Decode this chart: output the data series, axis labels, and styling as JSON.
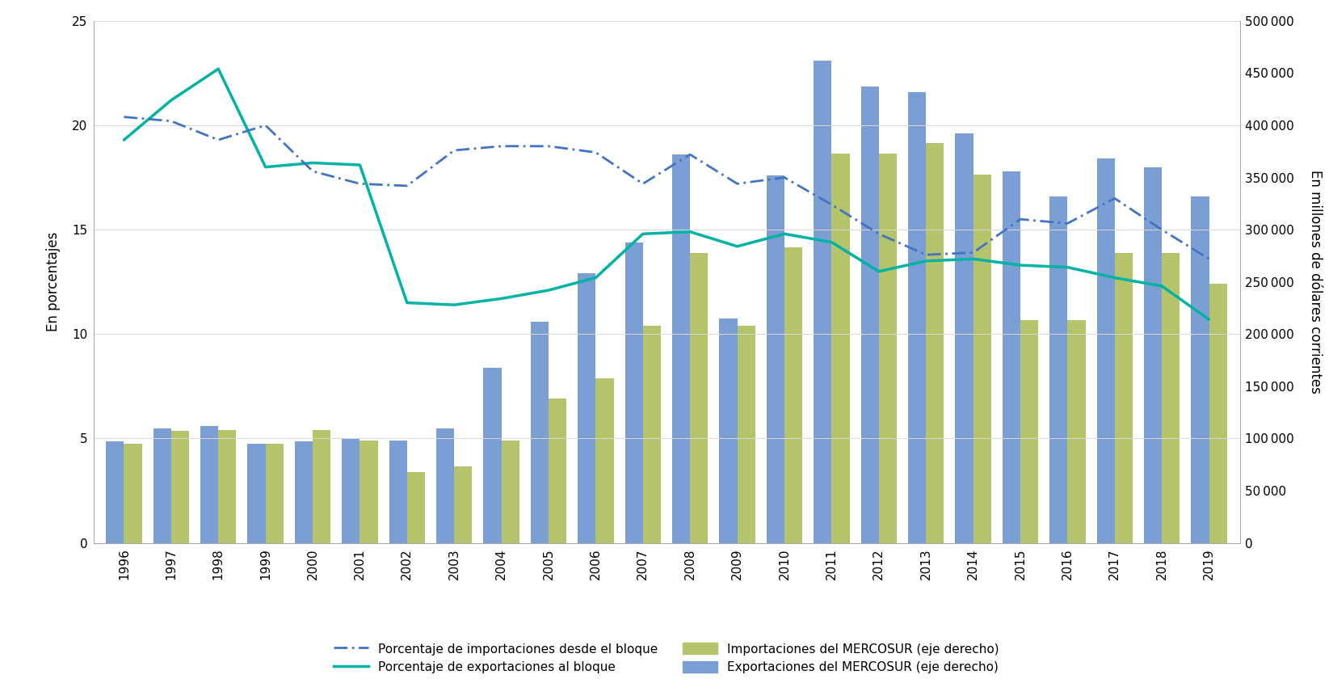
{
  "years": [
    1996,
    1997,
    1998,
    1999,
    2000,
    2001,
    2002,
    2003,
    2004,
    2005,
    2006,
    2007,
    2008,
    2009,
    2010,
    2011,
    2012,
    2013,
    2014,
    2015,
    2016,
    2017,
    2018,
    2019
  ],
  "exports_mercosur": [
    97000,
    110000,
    112000,
    95000,
    97000,
    100000,
    98000,
    110000,
    168000,
    212000,
    258000,
    288000,
    372000,
    215000,
    352000,
    462000,
    437000,
    432000,
    392000,
    356000,
    332000,
    368000,
    360000,
    332000
  ],
  "imports_mercosur": [
    95000,
    107000,
    108000,
    95000,
    108000,
    98000,
    68000,
    73000,
    98000,
    138000,
    158000,
    208000,
    278000,
    208000,
    283000,
    373000,
    373000,
    383000,
    353000,
    213000,
    213000,
    278000,
    278000,
    248000
  ],
  "pct_exports": [
    19.3,
    21.2,
    22.7,
    18.0,
    18.2,
    18.1,
    11.5,
    11.4,
    11.7,
    12.1,
    12.7,
    14.8,
    14.9,
    14.2,
    14.8,
    14.4,
    13.0,
    13.5,
    13.6,
    13.3,
    13.2,
    12.7,
    12.3,
    10.7
  ],
  "pct_imports": [
    20.4,
    20.2,
    19.3,
    20.0,
    17.8,
    17.2,
    17.1,
    18.8,
    19.0,
    19.0,
    18.7,
    17.2,
    18.6,
    17.2,
    17.5,
    16.2,
    14.8,
    13.8,
    13.9,
    15.5,
    15.3,
    16.5,
    15.0,
    13.6
  ],
  "bar_color_exports": "#7b9fd4",
  "bar_color_imports": "#b5c46a",
  "line_color_exports": "#00b3a4",
  "line_color_imports": "#4472c4",
  "left_ylim": [
    0,
    25
  ],
  "right_ylim": [
    0,
    500000
  ],
  "left_yticks": [
    0,
    5,
    10,
    15,
    20,
    25
  ],
  "right_yticks": [
    0,
    50000,
    100000,
    150000,
    200000,
    250000,
    300000,
    350000,
    400000,
    450000,
    500000
  ],
  "left_ylabel": "En porcentajes",
  "right_ylabel": "En millones de dólares corrientes",
  "legend_pct_imports": "Porcentaje de importaciones desde el bloque",
  "legend_pct_exports": "Porcentaje de exportaciones al bloque",
  "legend_imports": "Importaciones del MERCOSUR (eje derecho)",
  "legend_exports": "Exportaciones del MERCOSUR (eje derecho)",
  "background_color": "#ffffff",
  "grid_color": "#d8d8d8"
}
